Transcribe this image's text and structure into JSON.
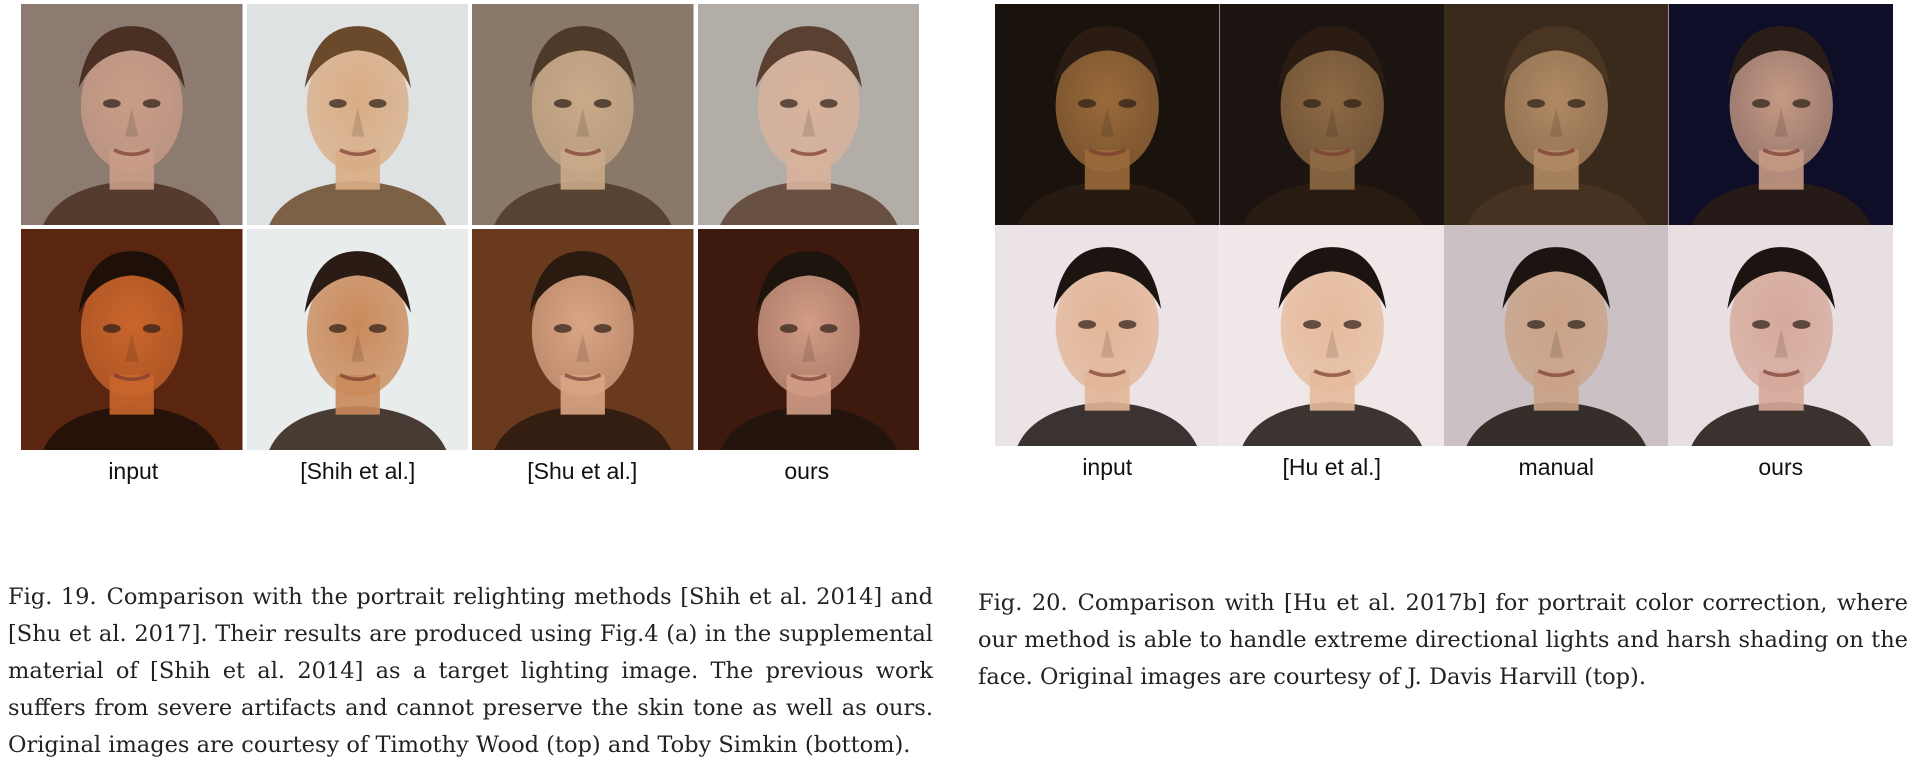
{
  "fig19": {
    "column_labels": [
      "input",
      "[Shih et al.]",
      "[Shu et al.]",
      "ours"
    ],
    "caption_label": "Fig. 19.",
    "caption_text": "Comparison with the portrait relighting methods [Shih et al. 2014] and [Shu et al. 2017]. Their results are produced using Fig.4 (a) in the supplemental material of [Shih et al. 2014] as a target lighting image. The previous work suffers from severe artifacts and cannot preserve the skin tone as well as ours. Original images are courtesy of Timothy Wood (top) and Toby Simkin (bottom).",
    "palettes": [
      [
        "#8d7a70",
        "#c99d88",
        "#4a3022"
      ],
      [
        "#dfe2e2",
        "#d9ad85",
        "#6b4a2c"
      ],
      [
        "#8a7868",
        "#c9a988",
        "#4e3a28"
      ],
      [
        "#b3ada8",
        "#d9b39c",
        "#5a4030"
      ],
      [
        "#5a2610",
        "#c9652c",
        "#1e0f08"
      ],
      [
        "#e9ecec",
        "#c98a5a",
        "#2a1c14"
      ],
      [
        "#6a3a1e",
        "#d9a585",
        "#2a1a10"
      ],
      [
        "#3e1a0e",
        "#d29c86",
        "#1e140e"
      ]
    ]
  },
  "fig20": {
    "column_labels": [
      "input",
      "[Hu et al.]",
      "manual",
      "ours"
    ],
    "caption_label": "Fig. 20.",
    "caption_text": "Comparison with [Hu et al. 2017b] for portrait color correction, where our method is able to handle extreme directional lights and harsh shading on the face. Original images are courtesy of J. Davis Harvill (top).",
    "palettes": [
      [
        "#1a120c",
        "#9a6a3a",
        "#2a1c12"
      ],
      [
        "#1c1410",
        "#8e6a44",
        "#2a1c12"
      ],
      [
        "#3a2a1c",
        "#b08a64",
        "#4a3422"
      ],
      [
        "#0e0e28",
        "#c69a84",
        "#2a1c16"
      ],
      [
        "#ebe3e6",
        "#e2b596",
        "#1c1410"
      ],
      [
        "#efe7e8",
        "#e6bb9c",
        "#1c1410"
      ],
      [
        "#cbc0c4",
        "#caa286",
        "#1c1410"
      ],
      [
        "#e7dfe2",
        "#d6a99a",
        "#1c1410"
      ]
    ]
  }
}
